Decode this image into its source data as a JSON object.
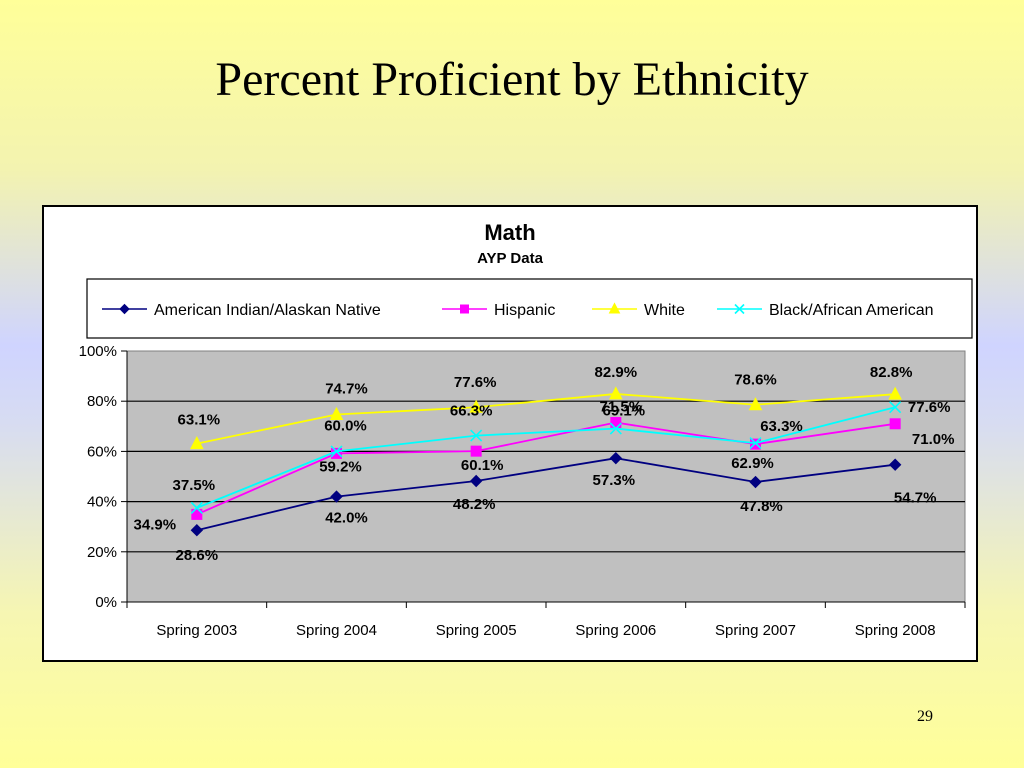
{
  "slide": {
    "title": "Percent Proficient by Ethnicity",
    "page_number": "29",
    "background": "#ffff99"
  },
  "chart_data": {
    "type": "line",
    "title": "Math",
    "subtitle": "AYP Data",
    "xlabel": "",
    "ylabel": "",
    "categories": [
      "Spring 2003",
      "Spring 2004",
      "Spring 2005",
      "Spring 2006",
      "Spring 2007",
      "Spring 2008"
    ],
    "ylim": [
      0,
      100
    ],
    "yticks": [
      "0%",
      "20%",
      "40%",
      "60%",
      "80%",
      "100%"
    ],
    "grid": true,
    "legend_position": "top",
    "plot_background": "#c0c0c0",
    "series": [
      {
        "name": "American Indian/Alaskan Native",
        "values": [
          28.6,
          42.0,
          48.2,
          57.3,
          47.8,
          54.7
        ],
        "labels": [
          "28.6%",
          "42.0%",
          "48.2%",
          "57.3%",
          "47.8%",
          "54.7%"
        ],
        "color": "#000080",
        "marker": "diamond"
      },
      {
        "name": "Hispanic",
        "values": [
          34.9,
          59.2,
          60.1,
          71.5,
          62.9,
          71.0
        ],
        "labels": [
          "34.9%",
          "59.2%",
          "60.1%",
          "71.5%",
          "62.9%",
          "71.0%"
        ],
        "color": "#ff00ff",
        "marker": "square"
      },
      {
        "name": "White",
        "values": [
          63.1,
          74.7,
          77.6,
          82.9,
          78.6,
          82.8
        ],
        "labels": [
          "63.1%",
          "74.7%",
          "77.6%",
          "82.9%",
          "78.6%",
          "82.8%"
        ],
        "color": "#ffff00",
        "marker": "triangle"
      },
      {
        "name": "Black/African American",
        "values": [
          37.5,
          60.0,
          66.3,
          69.1,
          63.3,
          77.6
        ],
        "labels": [
          "37.5%",
          "60.0%",
          "66.3%",
          "69.1%",
          "63.3%",
          "77.6%"
        ],
        "color": "#00ffff",
        "marker": "x"
      }
    ]
  }
}
